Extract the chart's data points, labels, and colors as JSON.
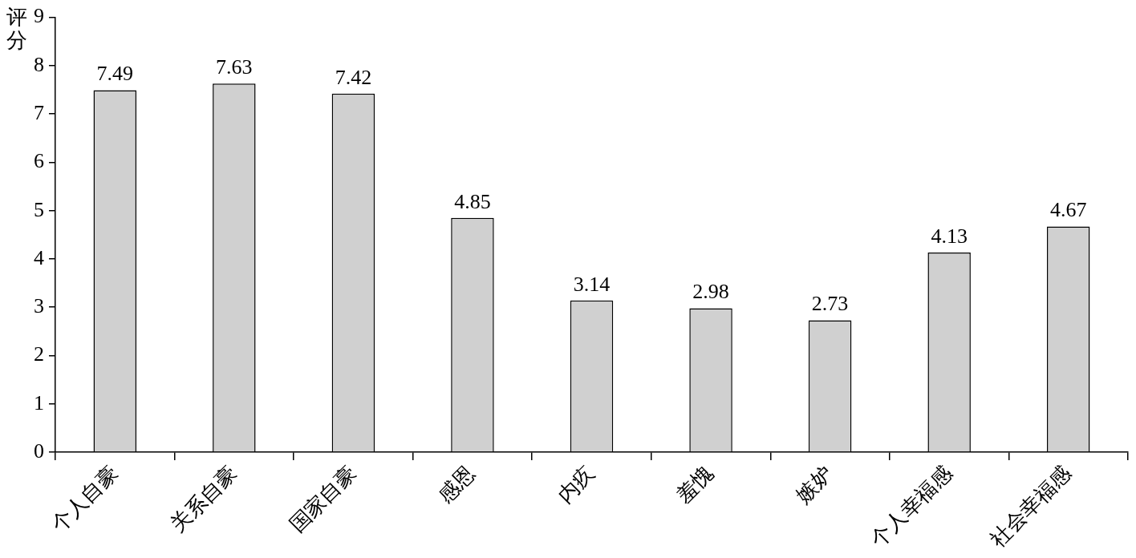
{
  "chart_data": {
    "type": "bar",
    "ylabel": "评分",
    "categories": [
      "个人自豪",
      "关系自豪",
      "国家自豪",
      "感恩",
      "内疚",
      "羞愧",
      "嫉妒",
      "个人幸福感",
      "社会幸福感"
    ],
    "values": [
      7.49,
      7.63,
      7.42,
      4.85,
      3.14,
      2.98,
      2.73,
      4.13,
      4.67
    ],
    "color": "#d0d0d0",
    "ylim": [
      0,
      9
    ],
    "yticks": [
      0,
      1,
      2,
      3,
      4,
      5,
      6,
      7,
      8,
      9
    ],
    "grid": false,
    "legend": false,
    "data_labels": true
  }
}
